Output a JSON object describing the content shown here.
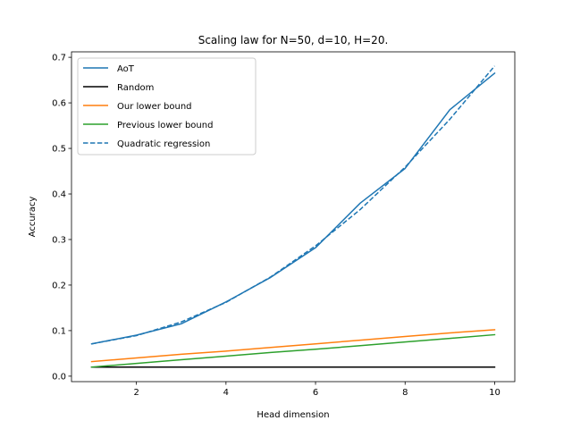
{
  "chart_data": {
    "type": "line",
    "title": "Scaling law for N=50, d=10, H=20.",
    "xlabel": "Head dimension",
    "ylabel": "Accuracy",
    "xlim": [
      0.55,
      10.45
    ],
    "ylim": [
      -0.012,
      0.712
    ],
    "xticks": [
      2,
      4,
      6,
      8,
      10
    ],
    "xtick_labels": [
      "2",
      "4",
      "6",
      "8",
      "10"
    ],
    "yticks": [
      0.0,
      0.1,
      0.2,
      0.3,
      0.4,
      0.5,
      0.6,
      0.7
    ],
    "ytick_labels": [
      "0.0",
      "0.1",
      "0.2",
      "0.3",
      "0.4",
      "0.5",
      "0.6",
      "0.7"
    ],
    "grid": false,
    "legend_position": "top-left",
    "x": [
      1,
      2,
      3,
      4,
      5,
      6,
      7,
      8,
      9,
      10
    ],
    "series": [
      {
        "name": "AoT",
        "color": "#1f77b4",
        "dash": "solid",
        "values": [
          0.071,
          0.09,
          0.115,
          0.163,
          0.217,
          0.282,
          0.38,
          0.456,
          0.585,
          0.665
        ]
      },
      {
        "name": "Random",
        "color": "#000000",
        "dash": "solid",
        "values": [
          0.02,
          0.02,
          0.02,
          0.02,
          0.02,
          0.02,
          0.02,
          0.02,
          0.02,
          0.02
        ]
      },
      {
        "name": "Our lower bound",
        "color": "#ff7f0e",
        "dash": "solid",
        "values": [
          0.032,
          0.04,
          0.048,
          0.055,
          0.063,
          0.071,
          0.079,
          0.087,
          0.095,
          0.102
        ]
      },
      {
        "name": "Previous lower bound",
        "color": "#2ca02c",
        "dash": "solid",
        "values": [
          0.02,
          0.028,
          0.036,
          0.044,
          0.052,
          0.059,
          0.067,
          0.075,
          0.083,
          0.091
        ]
      },
      {
        "name": "Quadratic regression",
        "color": "#1f77b4",
        "dash": "dashed",
        "values": [
          0.071,
          0.089,
          0.119,
          0.162,
          0.218,
          0.286,
          0.366,
          0.459,
          0.564,
          0.681
        ]
      }
    ]
  }
}
